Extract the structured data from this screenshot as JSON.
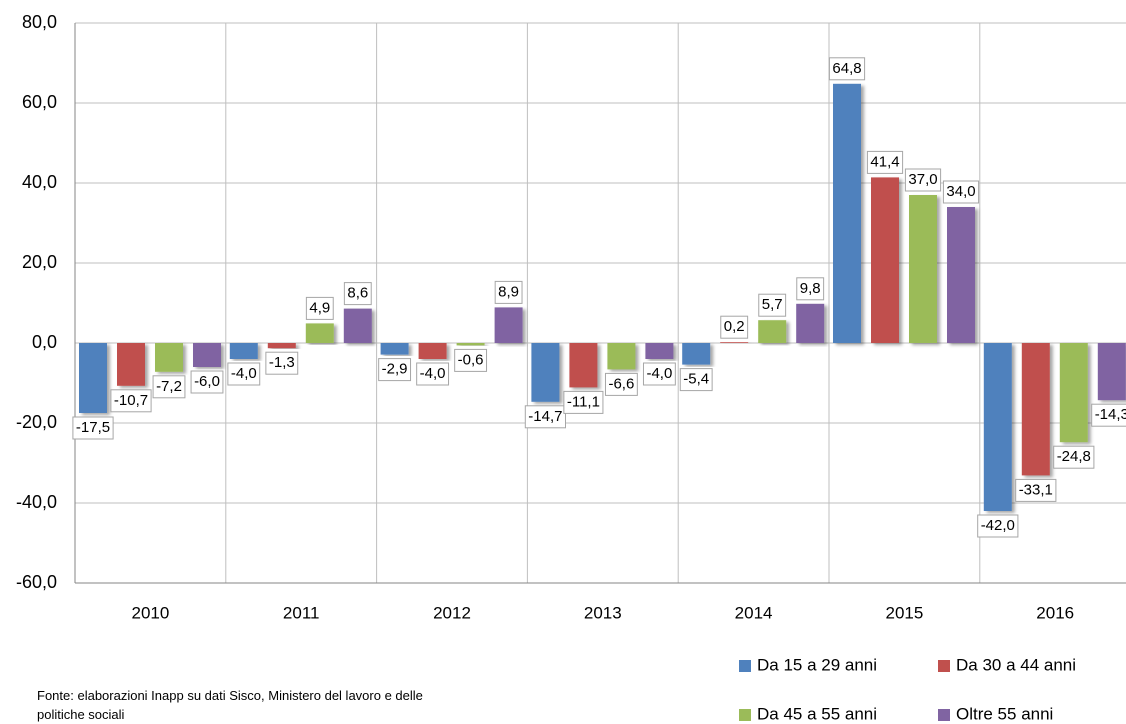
{
  "chart_data": {
    "type": "bar",
    "categories": [
      "2010",
      "2011",
      "2012",
      "2013",
      "2014",
      "2015",
      "2016"
    ],
    "series": [
      {
        "name": "Da 15 a 29 anni",
        "color": "#4f81bd",
        "values": [
          -17.5,
          -4.0,
          -2.9,
          -14.7,
          -5.4,
          64.8,
          -42.0
        ],
        "value_labels": [
          "-17,5",
          "-4,0",
          "-2,9",
          "-14,7",
          "-5,4",
          "64,8",
          "-42,0"
        ]
      },
      {
        "name": "Da 30 a 44 anni",
        "color": "#c0504d",
        "values": [
          -10.7,
          -1.3,
          -4.0,
          -11.1,
          0.2,
          41.4,
          -33.1
        ],
        "value_labels": [
          "-10,7",
          "-1,3",
          "-4,0",
          "-11,1",
          "0,2",
          "41,4",
          "-33,1"
        ]
      },
      {
        "name": "Da 45 a 55 anni",
        "color": "#9bbb59",
        "values": [
          -7.2,
          4.9,
          -0.6,
          -6.6,
          5.7,
          37.0,
          -24.8
        ],
        "value_labels": [
          "-7,2",
          "4,9",
          "-0,6",
          "-6,6",
          "5,7",
          "37,0",
          "-24,8"
        ]
      },
      {
        "name": "Oltre 55 anni",
        "color": "#8064a2",
        "values": [
          -6.0,
          8.6,
          8.9,
          -4.0,
          9.8,
          34.0,
          -14.3
        ],
        "value_labels": [
          "-6,0",
          "8,6",
          "8,9",
          "-4,0",
          "9,8",
          "34,0",
          "-14,3"
        ]
      }
    ],
    "ylim": [
      -60,
      80
    ],
    "yticks": [
      {
        "value": -60,
        "label": "-60,0"
      },
      {
        "value": -40,
        "label": "-40,0"
      },
      {
        "value": -20,
        "label": "-20,0"
      },
      {
        "value": 0,
        "label": "0,0"
      },
      {
        "value": 20,
        "label": "20,0"
      },
      {
        "value": 40,
        "label": "40,0"
      },
      {
        "value": 60,
        "label": "60,0"
      },
      {
        "value": 80,
        "label": "80,0"
      }
    ],
    "grid": true,
    "legend": "bottom-right",
    "source": "Fonte: elaborazioni Inapp su dati Sisco, Ministero del lavoro e delle politiche sociali"
  }
}
